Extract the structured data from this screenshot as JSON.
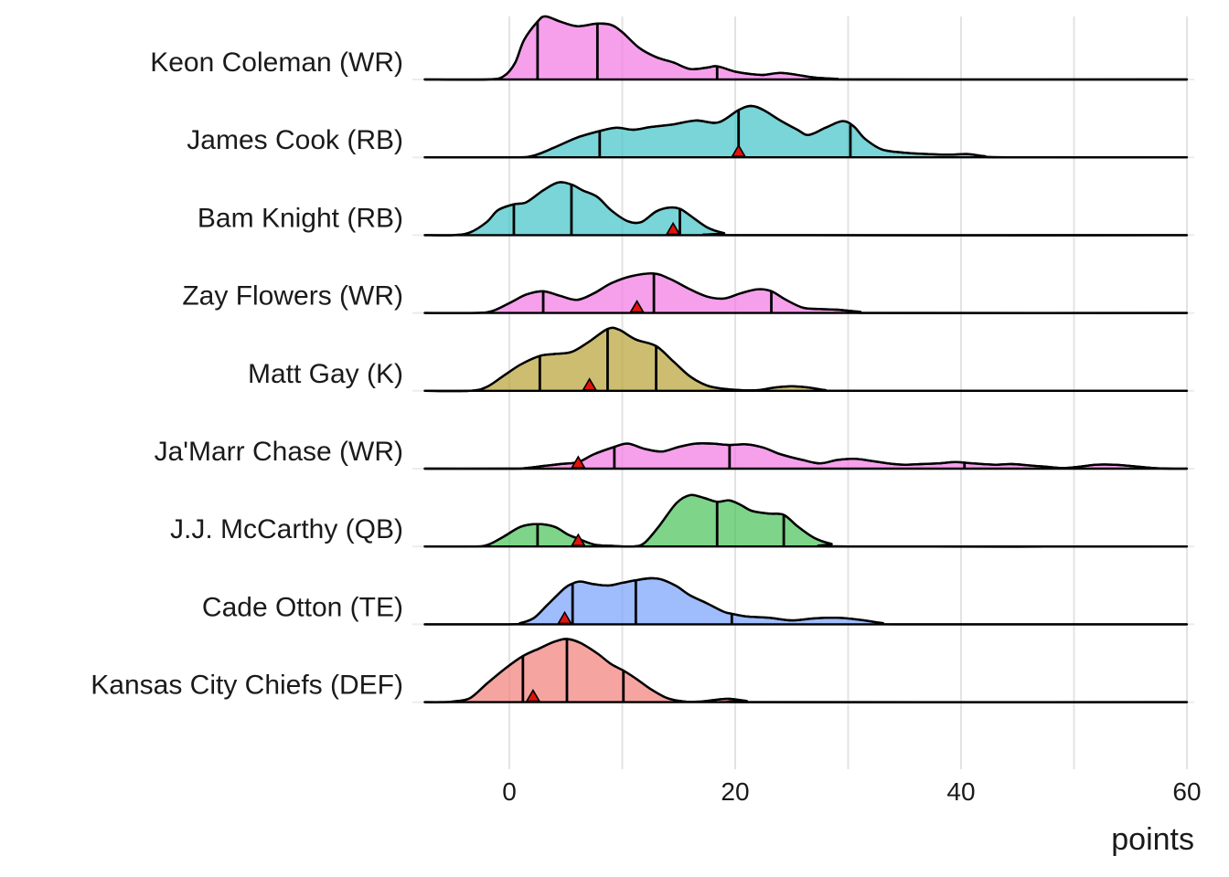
{
  "chart_data": {
    "type": "ridgeline",
    "title": "",
    "xlabel": "points",
    "ylabel": "",
    "xlim": [
      -8,
      61
    ],
    "xticks": [
      0,
      20,
      40,
      60
    ],
    "xtick_labels": [
      "0",
      "20",
      "40",
      "60"
    ],
    "grid": true,
    "quantile_lines": "25th, 50th, 75th percentile",
    "marker_shape": "triangle",
    "colors": {
      "WR": "#f37be4",
      "RB": "#45c5c7",
      "K": "#b9a43a",
      "QB": "#4cc35c",
      "TE": "#7aa2fb",
      "DEF": "#f3817b",
      "marker": "#e3120b"
    },
    "series": [
      {
        "name": "Keon Coleman (WR)",
        "position": "WR",
        "quantiles": [
          2.5,
          7.8,
          18.4
        ],
        "actual": null,
        "density": [
          [
            -7.5,
            0
          ],
          [
            -2,
            0
          ],
          [
            -0.5,
            0.05
          ],
          [
            0.5,
            0.25
          ],
          [
            1.3,
            0.6
          ],
          [
            2.5,
            0.88
          ],
          [
            3.2,
            0.96
          ],
          [
            4.5,
            0.88
          ],
          [
            6,
            0.81
          ],
          [
            7.8,
            0.85
          ],
          [
            9,
            0.83
          ],
          [
            10,
            0.72
          ],
          [
            11.5,
            0.48
          ],
          [
            13,
            0.34
          ],
          [
            14.5,
            0.26
          ],
          [
            16,
            0.16
          ],
          [
            17.5,
            0.18
          ],
          [
            18.4,
            0.2
          ],
          [
            20,
            0.12
          ],
          [
            21.5,
            0.08
          ],
          [
            22.5,
            0.07
          ],
          [
            24,
            0.1
          ],
          [
            25.5,
            0.07
          ],
          [
            27,
            0.03
          ],
          [
            29,
            0.01
          ],
          [
            31,
            0
          ],
          [
            60,
            0
          ]
        ]
      },
      {
        "name": "James Cook (RB)",
        "position": "RB",
        "quantiles": [
          8,
          20.3,
          30.2
        ],
        "actual": 20.3,
        "density": [
          [
            -7.5,
            0
          ],
          [
            0,
            0
          ],
          [
            2,
            0.02
          ],
          [
            4,
            0.15
          ],
          [
            6,
            0.3
          ],
          [
            8,
            0.4
          ],
          [
            9.5,
            0.45
          ],
          [
            11,
            0.42
          ],
          [
            12.5,
            0.46
          ],
          [
            14.5,
            0.5
          ],
          [
            16.5,
            0.56
          ],
          [
            18.5,
            0.53
          ],
          [
            20.3,
            0.72
          ],
          [
            21.4,
            0.78
          ],
          [
            22.5,
            0.72
          ],
          [
            24,
            0.56
          ],
          [
            25.5,
            0.42
          ],
          [
            26.5,
            0.34
          ],
          [
            28,
            0.45
          ],
          [
            29.5,
            0.55
          ],
          [
            30.5,
            0.47
          ],
          [
            31.5,
            0.28
          ],
          [
            33,
            0.12
          ],
          [
            35,
            0.07
          ],
          [
            37,
            0.05
          ],
          [
            39,
            0.04
          ],
          [
            40.5,
            0.05
          ],
          [
            42,
            0.02
          ],
          [
            44,
            0
          ],
          [
            60,
            0
          ]
        ]
      },
      {
        "name": "Bam Knight (RB)",
        "position": "RB",
        "quantiles": [
          0.4,
          5.5,
          15.1
        ],
        "actual": 14.5,
        "density": [
          [
            -7.5,
            0
          ],
          [
            -5,
            0
          ],
          [
            -3.5,
            0.04
          ],
          [
            -2,
            0.2
          ],
          [
            -1,
            0.38
          ],
          [
            0.4,
            0.47
          ],
          [
            1.5,
            0.5
          ],
          [
            3,
            0.68
          ],
          [
            4.3,
            0.8
          ],
          [
            5.5,
            0.77
          ],
          [
            6.5,
            0.68
          ],
          [
            7.8,
            0.58
          ],
          [
            9,
            0.38
          ],
          [
            10.5,
            0.21
          ],
          [
            11.7,
            0.2
          ],
          [
            13,
            0.36
          ],
          [
            14.2,
            0.42
          ],
          [
            15.1,
            0.4
          ],
          [
            16,
            0.3
          ],
          [
            17.5,
            0.12
          ],
          [
            19,
            0.03
          ],
          [
            20.5,
            0
          ],
          [
            60,
            0
          ]
        ]
      },
      {
        "name": "Zay Flowers (WR)",
        "position": "WR",
        "quantiles": [
          3,
          12.8,
          23.2
        ],
        "actual": 11.3,
        "density": [
          [
            -7.5,
            0
          ],
          [
            -3,
            0
          ],
          [
            -1.5,
            0.03
          ],
          [
            0,
            0.15
          ],
          [
            1.5,
            0.28
          ],
          [
            3,
            0.33
          ],
          [
            4.5,
            0.26
          ],
          [
            6,
            0.2
          ],
          [
            7.5,
            0.3
          ],
          [
            9,
            0.45
          ],
          [
            10.8,
            0.56
          ],
          [
            12.8,
            0.6
          ],
          [
            14.2,
            0.52
          ],
          [
            16,
            0.36
          ],
          [
            17.5,
            0.25
          ],
          [
            19,
            0.22
          ],
          [
            20.5,
            0.3
          ],
          [
            22,
            0.36
          ],
          [
            23.2,
            0.33
          ],
          [
            24.5,
            0.2
          ],
          [
            26,
            0.08
          ],
          [
            27.5,
            0.06
          ],
          [
            29,
            0.05
          ],
          [
            31,
            0.02
          ],
          [
            33,
            0
          ],
          [
            60,
            0
          ]
        ]
      },
      {
        "name": "Matt Gay (K)",
        "position": "K",
        "quantiles": [
          2.7,
          8.7,
          13
        ],
        "actual": 7.1,
        "density": [
          [
            -7.5,
            0
          ],
          [
            -3.5,
            0
          ],
          [
            -2,
            0.06
          ],
          [
            -0.5,
            0.23
          ],
          [
            1,
            0.4
          ],
          [
            2.7,
            0.53
          ],
          [
            4,
            0.56
          ],
          [
            5.5,
            0.59
          ],
          [
            7,
            0.74
          ],
          [
            8.7,
            0.94
          ],
          [
            9.7,
            0.93
          ],
          [
            11.2,
            0.78
          ],
          [
            13,
            0.68
          ],
          [
            14.5,
            0.45
          ],
          [
            16,
            0.22
          ],
          [
            17.5,
            0.08
          ],
          [
            19,
            0.03
          ],
          [
            20.5,
            0.01
          ],
          [
            22,
            0.01
          ],
          [
            23.5,
            0.05
          ],
          [
            25,
            0.07
          ],
          [
            26.5,
            0.05
          ],
          [
            28,
            0.01
          ],
          [
            29.5,
            0
          ],
          [
            60,
            0
          ]
        ]
      },
      {
        "name": "Ja'Marr Chase (WR)",
        "position": "WR",
        "quantiles": [
          9.3,
          19.5,
          40.3
        ],
        "actual": 6.1,
        "density": [
          [
            -7.5,
            0
          ],
          [
            0,
            0
          ],
          [
            1.5,
            0.01
          ],
          [
            3,
            0.04
          ],
          [
            4.5,
            0.07
          ],
          [
            6.1,
            0.1
          ],
          [
            7.5,
            0.22
          ],
          [
            9.3,
            0.33
          ],
          [
            10.5,
            0.38
          ],
          [
            12,
            0.3
          ],
          [
            13.5,
            0.26
          ],
          [
            15,
            0.33
          ],
          [
            16.5,
            0.38
          ],
          [
            18,
            0.38
          ],
          [
            19.5,
            0.36
          ],
          [
            21,
            0.37
          ],
          [
            22.5,
            0.32
          ],
          [
            24,
            0.22
          ],
          [
            26,
            0.13
          ],
          [
            27.5,
            0.08
          ],
          [
            29,
            0.13
          ],
          [
            30.5,
            0.15
          ],
          [
            32,
            0.12
          ],
          [
            33.5,
            0.08
          ],
          [
            35,
            0.06
          ],
          [
            36.5,
            0.07
          ],
          [
            38,
            0.08
          ],
          [
            39.5,
            0.1
          ],
          [
            41,
            0.08
          ],
          [
            43,
            0.06
          ],
          [
            44.5,
            0.07
          ],
          [
            46,
            0.05
          ],
          [
            47.5,
            0.03
          ],
          [
            49,
            0.01
          ],
          [
            50.5,
            0.03
          ],
          [
            52,
            0.06
          ],
          [
            53.5,
            0.06
          ],
          [
            55,
            0.04
          ],
          [
            57,
            0.01
          ],
          [
            58.5,
            0
          ],
          [
            60,
            0
          ]
        ]
      },
      {
        "name": "J.J. McCarthy (QB)",
        "position": "QB",
        "quantiles": [
          2.5,
          18.4,
          24.3
        ],
        "actual": 6.1,
        "density": [
          [
            -7.5,
            0
          ],
          [
            -3.5,
            0
          ],
          [
            -2,
            0.02
          ],
          [
            -0.5,
            0.15
          ],
          [
            1,
            0.3
          ],
          [
            2.5,
            0.34
          ],
          [
            4,
            0.3
          ],
          [
            5.2,
            0.18
          ],
          [
            6.1,
            0.12
          ],
          [
            7.5,
            0.03
          ],
          [
            9,
            0.01
          ],
          [
            11,
            0.0
          ],
          [
            12,
            0.06
          ],
          [
            13.3,
            0.32
          ],
          [
            14.8,
            0.66
          ],
          [
            16,
            0.78
          ],
          [
            17.2,
            0.74
          ],
          [
            18.4,
            0.68
          ],
          [
            19.5,
            0.7
          ],
          [
            20.5,
            0.63
          ],
          [
            21.5,
            0.54
          ],
          [
            23,
            0.5
          ],
          [
            24.3,
            0.48
          ],
          [
            25.5,
            0.31
          ],
          [
            27,
            0.13
          ],
          [
            28.5,
            0.04
          ],
          [
            30,
            0
          ],
          [
            60,
            0
          ]
        ]
      },
      {
        "name": "Cade Otton (TE)",
        "position": "TE",
        "quantiles": [
          5.6,
          11.2,
          19.7
        ],
        "actual": 4.9,
        "density": [
          [
            -7.5,
            0
          ],
          [
            0,
            0
          ],
          [
            1,
            0.02
          ],
          [
            2.2,
            0.1
          ],
          [
            3.4,
            0.3
          ],
          [
            4.9,
            0.55
          ],
          [
            5.6,
            0.62
          ],
          [
            6.3,
            0.65
          ],
          [
            7.5,
            0.61
          ],
          [
            8.8,
            0.59
          ],
          [
            10,
            0.63
          ],
          [
            11.2,
            0.67
          ],
          [
            12.5,
            0.7
          ],
          [
            13.5,
            0.68
          ],
          [
            14.8,
            0.58
          ],
          [
            16,
            0.44
          ],
          [
            17.5,
            0.32
          ],
          [
            19,
            0.19
          ],
          [
            19.7,
            0.16
          ],
          [
            21,
            0.12
          ],
          [
            23,
            0.1
          ],
          [
            25,
            0.06
          ],
          [
            27,
            0.09
          ],
          [
            29,
            0.1
          ],
          [
            31,
            0.07
          ],
          [
            33,
            0.02
          ],
          [
            35,
            0
          ],
          [
            60,
            0
          ]
        ]
      },
      {
        "name": "Kansas City Chiefs (DEF)",
        "position": "DEF",
        "quantiles": [
          1.2,
          5.1,
          10.1
        ],
        "actual": 2.1,
        "density": [
          [
            -7.5,
            0
          ],
          [
            -6,
            0
          ],
          [
            -5,
            0.01
          ],
          [
            -3.5,
            0.06
          ],
          [
            -2,
            0.28
          ],
          [
            -0.3,
            0.52
          ],
          [
            1.2,
            0.7
          ],
          [
            2.7,
            0.82
          ],
          [
            4,
            0.92
          ],
          [
            5.1,
            0.96
          ],
          [
            6.3,
            0.9
          ],
          [
            7.8,
            0.74
          ],
          [
            9,
            0.58
          ],
          [
            10.1,
            0.48
          ],
          [
            11.2,
            0.36
          ],
          [
            12.5,
            0.2
          ],
          [
            14,
            0.06
          ],
          [
            15.5,
            0.01
          ],
          [
            17,
            0.01
          ],
          [
            18.5,
            0.04
          ],
          [
            19.5,
            0.05
          ],
          [
            21,
            0.02
          ],
          [
            22.5,
            0
          ],
          [
            60,
            0
          ]
        ]
      }
    ]
  }
}
